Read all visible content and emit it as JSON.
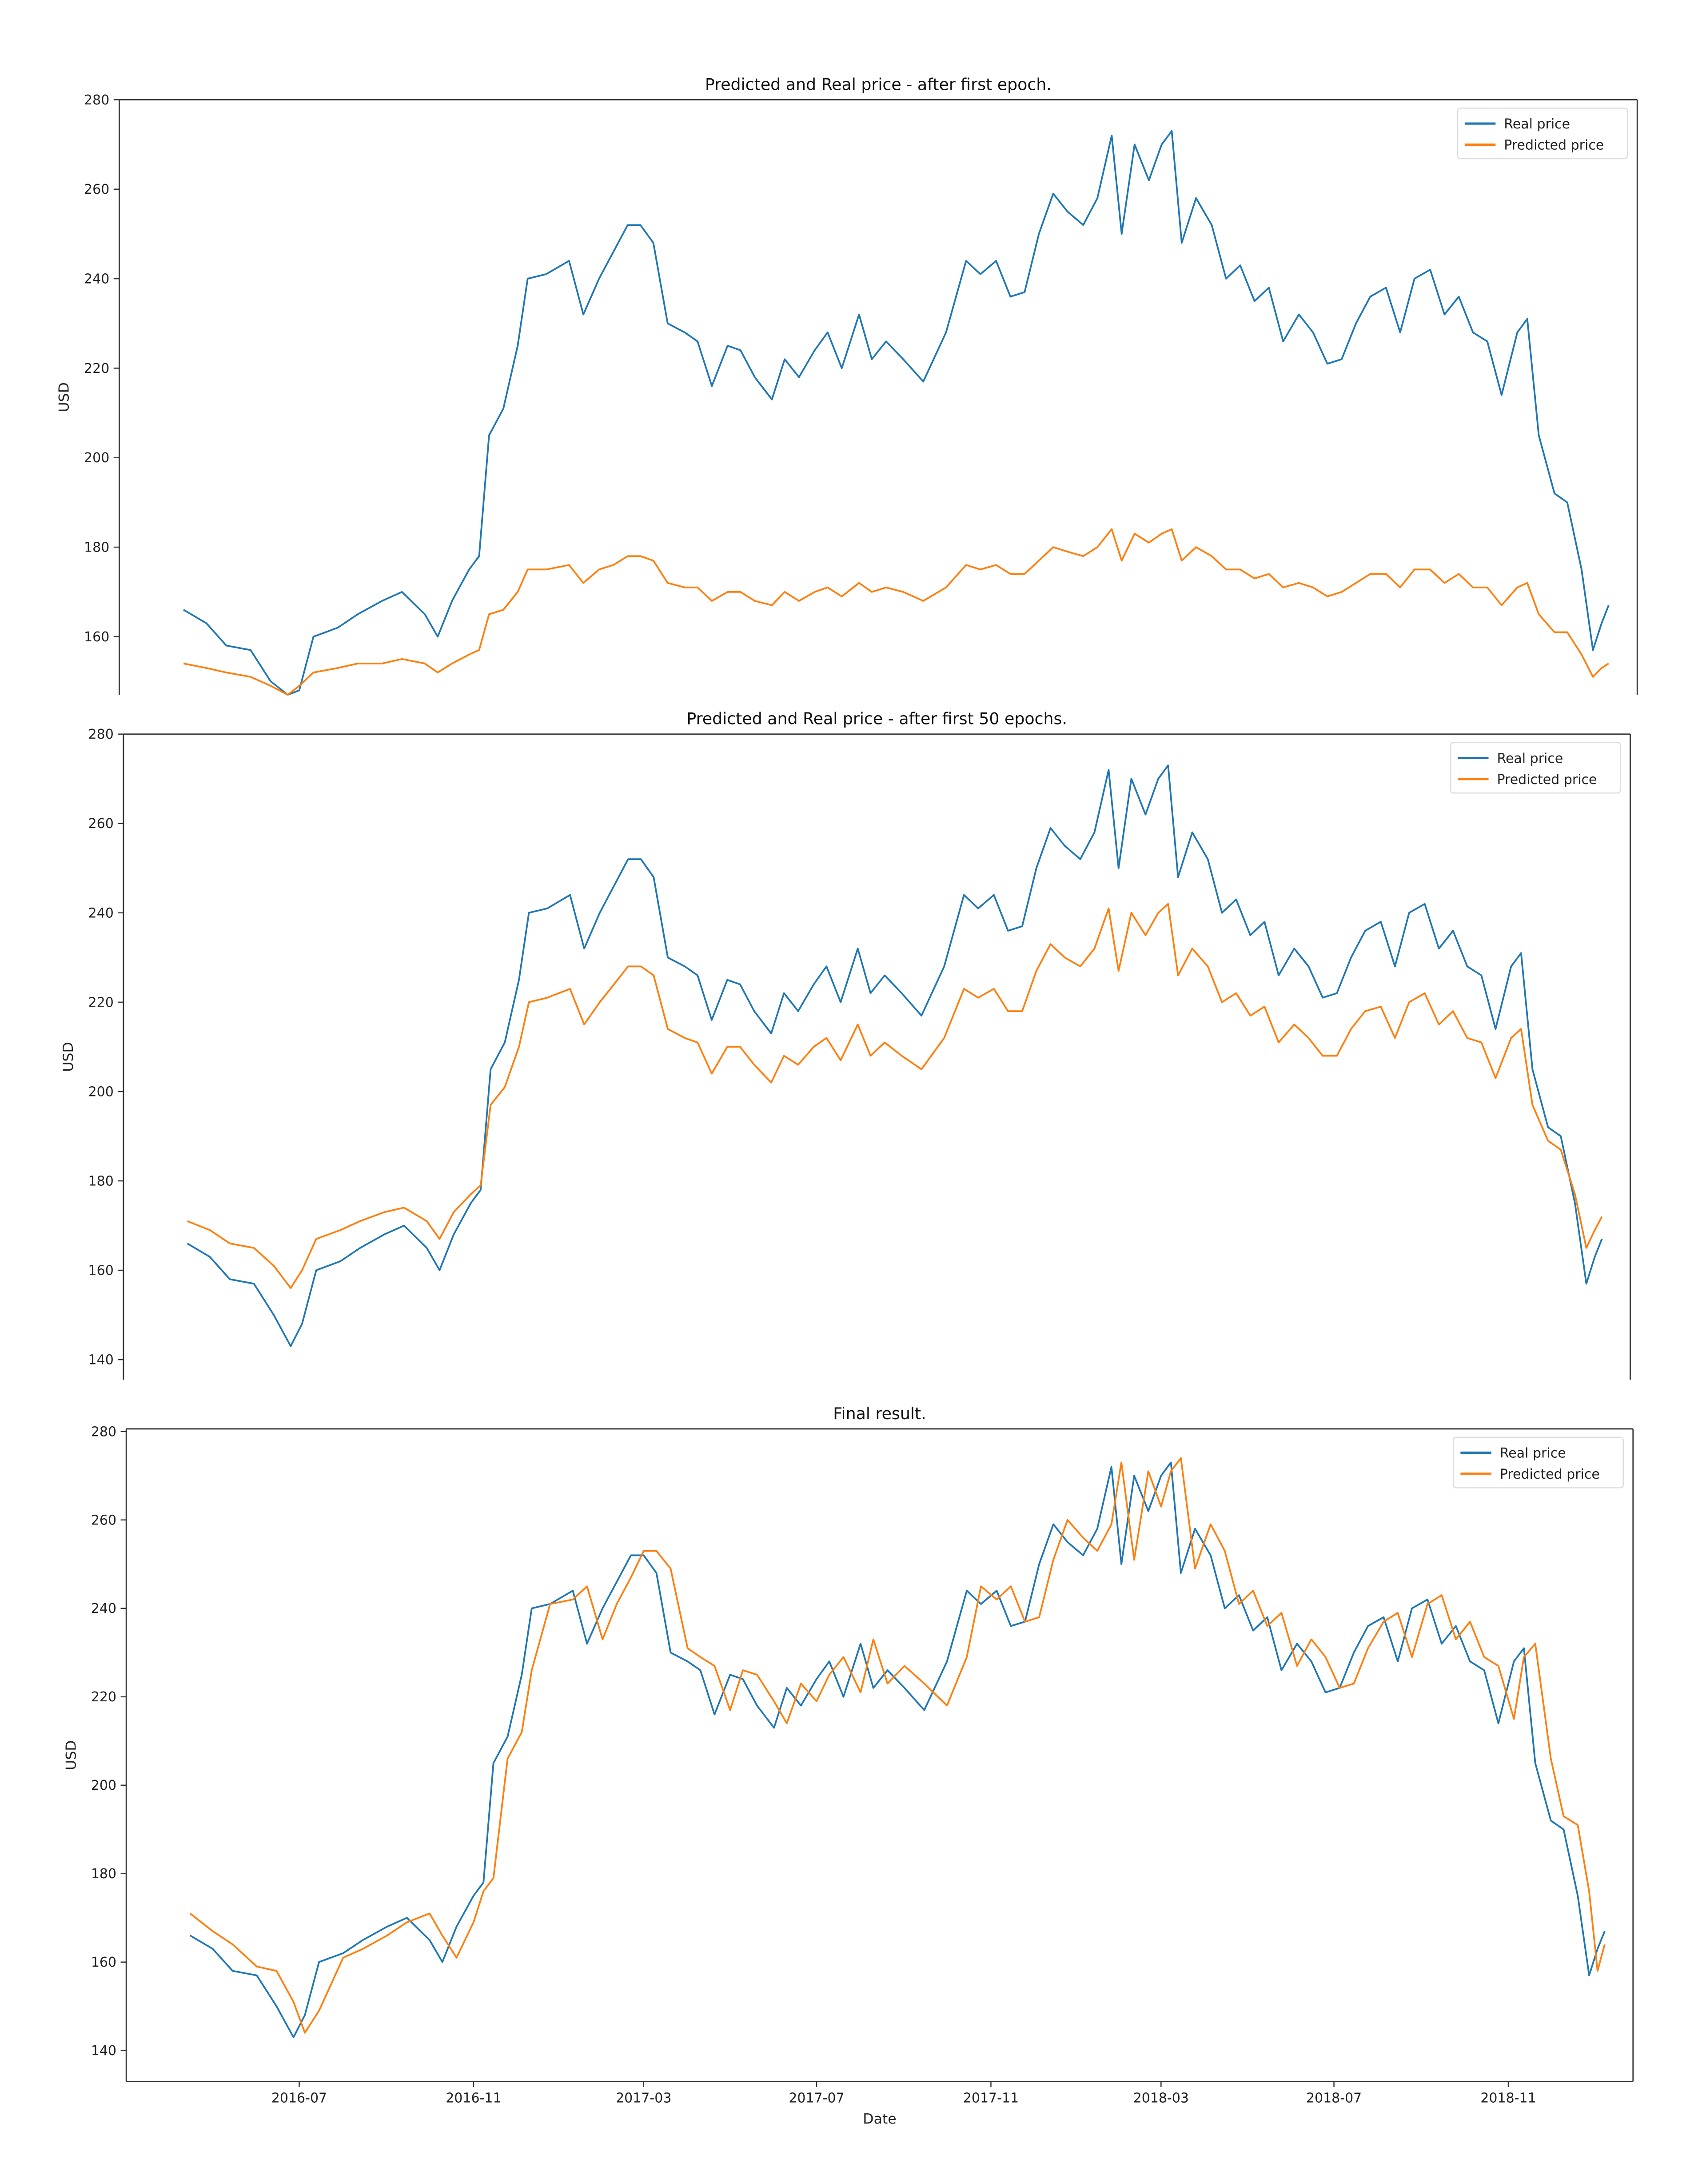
{
  "chart_data": [
    {
      "type": "line",
      "title": "Predicted and Real price - after first epoch.",
      "xlabel": "",
      "ylabel": "USD",
      "ylim": [
        147,
        280
      ],
      "yticks": [
        160,
        180,
        200,
        220,
        240,
        260,
        280
      ],
      "xlim": [
        "2016-03-01",
        "2019-01-28"
      ],
      "xtick_labels_visible": false,
      "legend": "top-right",
      "grid": false,
      "series_ref": [
        "real",
        "pred_epoch1"
      ]
    },
    {
      "type": "line",
      "title": "Predicted and Real price - after first 50 epochs.",
      "xlabel": "",
      "ylabel": "USD",
      "ylim": [
        135.5,
        280
      ],
      "yticks": [
        140,
        160,
        180,
        200,
        220,
        240,
        260,
        280
      ],
      "xlim": [
        "2016-03-01",
        "2019-01-28"
      ],
      "xtick_labels_visible": false,
      "legend": "top-right",
      "grid": false,
      "series_ref": [
        "real",
        "pred_epoch50"
      ]
    },
    {
      "type": "line",
      "title": "Final result.",
      "xlabel": "Date",
      "ylabel": "USD",
      "ylim": [
        133,
        280.6
      ],
      "yticks": [
        140,
        160,
        180,
        200,
        220,
        240,
        260,
        280
      ],
      "xlim": [
        "2016-03-01",
        "2019-01-28"
      ],
      "xticks": [
        "2016-07",
        "2016-11",
        "2017-03",
        "2017-07",
        "2017-11",
        "2018-03",
        "2018-07",
        "2018-11"
      ],
      "xtick_labels_visible": true,
      "legend": "top-right",
      "grid": false,
      "series_ref": [
        "real",
        "pred_final"
      ]
    }
  ],
  "legend_labels": {
    "real": "Real price",
    "predicted": "Predicted price"
  },
  "colors": {
    "real": "#1f77b4",
    "predicted": "#ff7f0e"
  },
  "x": [
    "2016-04-15",
    "2016-05-01",
    "2016-05-15",
    "2016-06-01",
    "2016-06-15",
    "2016-06-27",
    "2016-07-05",
    "2016-07-15",
    "2016-08-01",
    "2016-08-15",
    "2016-09-01",
    "2016-09-15",
    "2016-10-01",
    "2016-10-10",
    "2016-10-20",
    "2016-11-01",
    "2016-11-08",
    "2016-11-15",
    "2016-11-25",
    "2016-12-05",
    "2016-12-12",
    "2016-12-25",
    "2017-01-10",
    "2017-01-20",
    "2017-01-31",
    "2017-02-10",
    "2017-02-20",
    "2017-03-01",
    "2017-03-10",
    "2017-03-20",
    "2017-04-01",
    "2017-04-10",
    "2017-04-20",
    "2017-05-01",
    "2017-05-10",
    "2017-05-20",
    "2017-06-01",
    "2017-06-10",
    "2017-06-20",
    "2017-07-01",
    "2017-07-10",
    "2017-07-20",
    "2017-08-01",
    "2017-08-10",
    "2017-08-20",
    "2017-09-01",
    "2017-09-15",
    "2017-10-01",
    "2017-10-15",
    "2017-10-25",
    "2017-11-05",
    "2017-11-15",
    "2017-11-25",
    "2017-12-05",
    "2017-12-15",
    "2017-12-25",
    "2018-01-05",
    "2018-01-15",
    "2018-01-25",
    "2018-02-01",
    "2018-02-10",
    "2018-02-20",
    "2018-03-01",
    "2018-03-08",
    "2018-03-15",
    "2018-03-25",
    "2018-04-05",
    "2018-04-15",
    "2018-04-25",
    "2018-05-05",
    "2018-05-15",
    "2018-05-25",
    "2018-06-05",
    "2018-06-15",
    "2018-06-25",
    "2018-07-05",
    "2018-07-15",
    "2018-07-25",
    "2018-08-05",
    "2018-08-15",
    "2018-08-25",
    "2018-09-05",
    "2018-09-15",
    "2018-09-25",
    "2018-10-05",
    "2018-10-15",
    "2018-10-25",
    "2018-11-05",
    "2018-11-12",
    "2018-11-20",
    "2018-12-01",
    "2018-12-10",
    "2018-12-20",
    "2018-12-28",
    "2019-01-03",
    "2019-01-08"
  ],
  "series": {
    "real": [
      166,
      163,
      158,
      157,
      150,
      143,
      148,
      160,
      162,
      165,
      168,
      170,
      165,
      160,
      168,
      175,
      178,
      205,
      211,
      225,
      240,
      241,
      244,
      232,
      240,
      246,
      252,
      252,
      248,
      230,
      228,
      226,
      216,
      225,
      224,
      218,
      213,
      222,
      218,
      224,
      228,
      220,
      232,
      222,
      226,
      222,
      217,
      228,
      244,
      241,
      244,
      236,
      237,
      250,
      259,
      255,
      252,
      258,
      272,
      250,
      270,
      262,
      270,
      273,
      248,
      258,
      252,
      240,
      243,
      235,
      238,
      226,
      232,
      228,
      221,
      222,
      230,
      236,
      238,
      228,
      240,
      242,
      232,
      236,
      228,
      226,
      214,
      228,
      231,
      205,
      192,
      190,
      175,
      157,
      163,
      167
    ],
    "pred_epoch1": [
      154,
      153,
      152,
      151,
      149,
      147,
      149,
      152,
      153,
      154,
      154,
      155,
      154,
      152,
      154,
      156,
      157,
      165,
      166,
      170,
      175,
      175,
      176,
      172,
      175,
      176,
      178,
      178,
      177,
      172,
      171,
      171,
      168,
      170,
      170,
      168,
      167,
      170,
      168,
      170,
      171,
      169,
      172,
      170,
      171,
      170,
      168,
      171,
      176,
      175,
      176,
      174,
      174,
      177,
      180,
      179,
      178,
      180,
      184,
      177,
      183,
      181,
      183,
      184,
      177,
      180,
      178,
      175,
      175,
      173,
      174,
      171,
      172,
      171,
      169,
      170,
      172,
      174,
      174,
      171,
      175,
      175,
      172,
      174,
      171,
      171,
      167,
      171,
      172,
      165,
      161,
      161,
      156,
      151,
      153,
      154
    ],
    "pred_epoch50": [
      171,
      169,
      166,
      165,
      161,
      156,
      160,
      167,
      169,
      171,
      173,
      174,
      171,
      167,
      173,
      177,
      179,
      197,
      201,
      210,
      220,
      221,
      223,
      215,
      220,
      224,
      228,
      228,
      226,
      214,
      212,
      211,
      204,
      210,
      210,
      206,
      202,
      208,
      206,
      210,
      212,
      207,
      215,
      208,
      211,
      208,
      205,
      212,
      223,
      221,
      223,
      218,
      218,
      227,
      233,
      230,
      228,
      232,
      241,
      227,
      240,
      235,
      240,
      242,
      226,
      232,
      228,
      220,
      222,
      217,
      219,
      211,
      215,
      212,
      208,
      208,
      214,
      218,
      219,
      212,
      220,
      222,
      215,
      218,
      212,
      211,
      203,
      212,
      214,
      197,
      189,
      187,
      177,
      165,
      169,
      172
    ],
    "pred_final": [
      171,
      167,
      164,
      159,
      158,
      151,
      144,
      149,
      161,
      163,
      166,
      169,
      171,
      166,
      161,
      169,
      176,
      179,
      206,
      212,
      226,
      241,
      242,
      245,
      233,
      241,
      247,
      253,
      253,
      249,
      231,
      229,
      227,
      217,
      226,
      225,
      219,
      214,
      223,
      219,
      225,
      229,
      221,
      233,
      223,
      227,
      223,
      218,
      229,
      245,
      242,
      245,
      237,
      238,
      251,
      260,
      256,
      253,
      259,
      273,
      251,
      271,
      263,
      271,
      274,
      249,
      259,
      253,
      241,
      244,
      236,
      239,
      227,
      233,
      229,
      222,
      223,
      231,
      237,
      239,
      229,
      241,
      243,
      233,
      237,
      229,
      227,
      215,
      229,
      232,
      206,
      193,
      191,
      176,
      158,
      164
    ]
  }
}
